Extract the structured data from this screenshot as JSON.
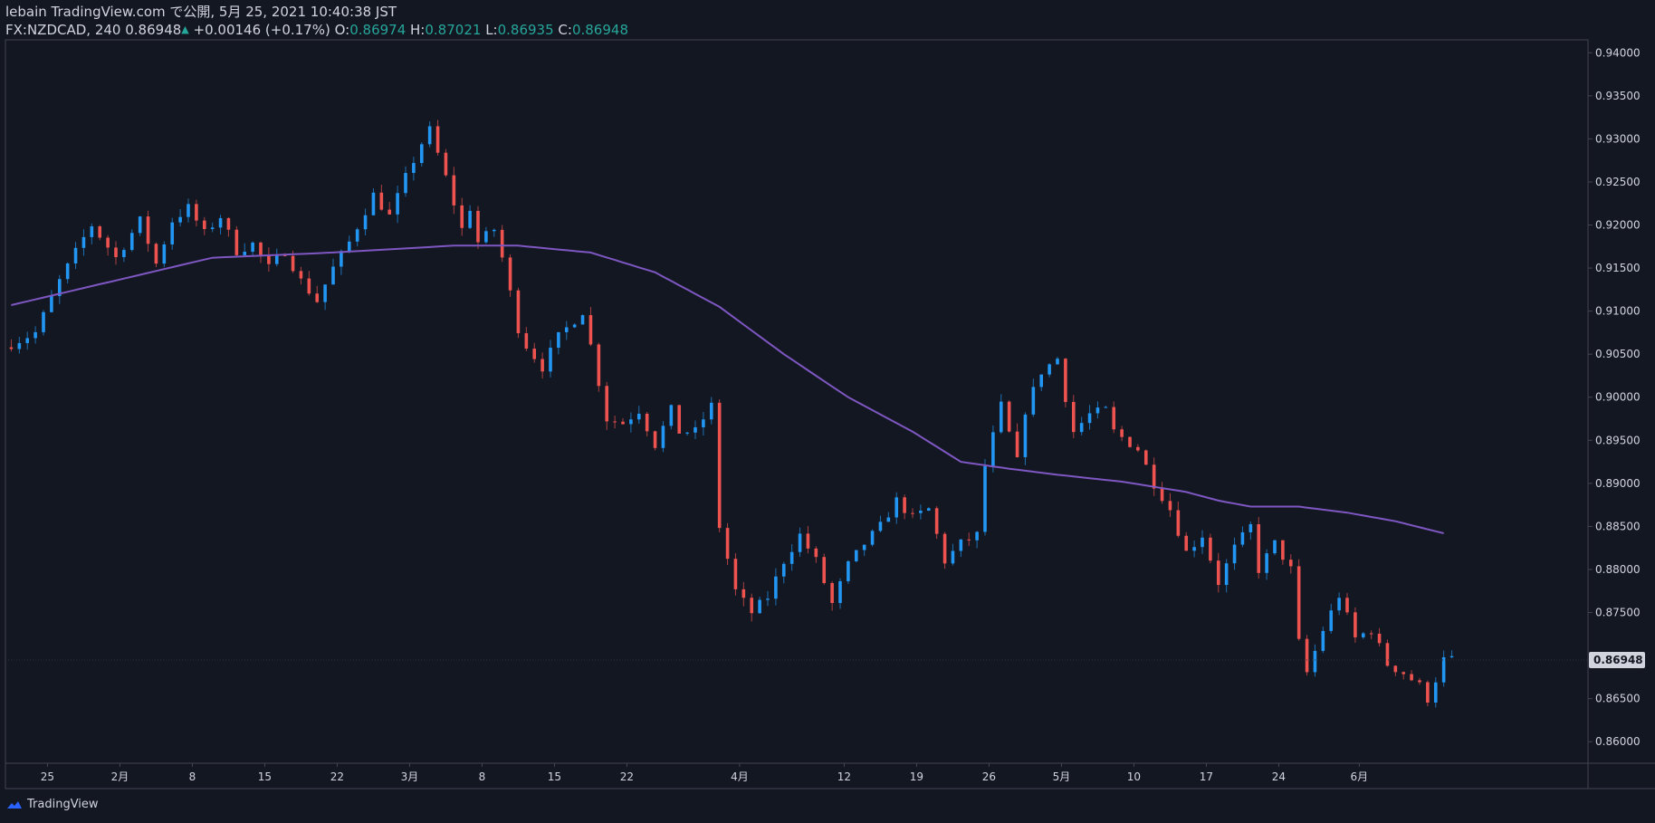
{
  "header": {
    "publisher_line": "lebain TradingView.com で公開, 5月 25, 2021 10:40:38 JST",
    "symbol": "FX:NZDCAD, 240",
    "last_price": "0.86948",
    "change_arrow": "▲",
    "change": "+0.00146 (+0.17%)",
    "open_label": "O:",
    "open_value": "0.86974",
    "high_label": "H:",
    "high_value": "0.87021",
    "low_label": "L:",
    "low_value": "0.86935",
    "close_label": "C:",
    "close_value": "0.86948"
  },
  "footer": {
    "brand": "TradingView",
    "brand_icon": "tradingview-cloud-icon"
  },
  "colors": {
    "background": "#131722",
    "up": "#2196f3",
    "down": "#ef5350",
    "moving_average": "#7e57c2",
    "text": "#d1d4dc",
    "green": "#26a69a"
  },
  "chart_data": {
    "type": "candlestick",
    "symbol": "FX:NZDCAD",
    "interval": "240",
    "ylim": [
      0.8575,
      0.9415
    ],
    "y_ticks": [
      "0.94000",
      "0.93500",
      "0.93000",
      "0.92500",
      "0.92000",
      "0.91500",
      "0.91000",
      "0.90500",
      "0.90000",
      "0.89500",
      "0.89000",
      "0.88500",
      "0.88000",
      "0.87500",
      "0.86500",
      "0.86000"
    ],
    "last_price_label": "0.86948",
    "x_ticks": [
      "25",
      "2月",
      "8",
      "15",
      "22",
      "3月",
      "8",
      "15",
      "22",
      "4月",
      "12",
      "19",
      "26",
      "5月",
      "10",
      "17",
      "24",
      "6月"
    ],
    "close_path": [
      [
        0,
        0.9062
      ],
      [
        3,
        0.9075
      ],
      [
        6,
        0.9135
      ],
      [
        9,
        0.9185
      ],
      [
        10,
        0.92
      ],
      [
        13,
        0.9162
      ],
      [
        16,
        0.9205
      ],
      [
        18,
        0.9155
      ],
      [
        20,
        0.9205
      ],
      [
        22,
        0.922
      ],
      [
        24,
        0.919
      ],
      [
        26,
        0.921
      ],
      [
        28,
        0.917
      ],
      [
        30,
        0.9178
      ],
      [
        32,
        0.915
      ],
      [
        34,
        0.917
      ],
      [
        36,
        0.9135
      ],
      [
        38,
        0.9112
      ],
      [
        40,
        0.915
      ],
      [
        42,
        0.918
      ],
      [
        45,
        0.9235
      ],
      [
        47,
        0.921
      ],
      [
        49,
        0.9255
      ],
      [
        51,
        0.9295
      ],
      [
        52,
        0.931
      ],
      [
        54,
        0.9255
      ],
      [
        56,
        0.9195
      ],
      [
        57,
        0.922
      ],
      [
        58,
        0.918
      ],
      [
        60,
        0.9195
      ],
      [
        61,
        0.9162
      ],
      [
        63,
        0.908
      ],
      [
        64,
        0.906
      ],
      [
        66,
        0.9035
      ],
      [
        68,
        0.907
      ],
      [
        71,
        0.91
      ],
      [
        72,
        0.906
      ],
      [
        74,
        0.8975
      ],
      [
        76,
        0.897
      ],
      [
        78,
        0.8985
      ],
      [
        80,
        0.8945
      ],
      [
        82,
        0.8985
      ],
      [
        83,
        0.896
      ],
      [
        85,
        0.896
      ],
      [
        87,
        0.899
      ],
      [
        88,
        0.885
      ],
      [
        90,
        0.8775
      ],
      [
        92,
        0.875
      ],
      [
        94,
        0.8768
      ],
      [
        96,
        0.881
      ],
      [
        98,
        0.884
      ],
      [
        100,
        0.881
      ],
      [
        102,
        0.876
      ],
      [
        104,
        0.8805
      ],
      [
        106,
        0.883
      ],
      [
        108,
        0.885
      ],
      [
        110,
        0.888
      ],
      [
        112,
        0.886
      ],
      [
        114,
        0.887
      ],
      [
        116,
        0.881
      ],
      [
        118,
        0.883
      ],
      [
        120,
        0.884
      ],
      [
        121,
        0.892
      ],
      [
        123,
        0.899
      ],
      [
        125,
        0.8925
      ],
      [
        126,
        0.8985
      ],
      [
        128,
        0.903
      ],
      [
        130,
        0.9045
      ],
      [
        131,
        0.9
      ],
      [
        132,
        0.896
      ],
      [
        134,
        0.898
      ],
      [
        136,
        0.8985
      ],
      [
        137,
        0.896
      ],
      [
        140,
        0.894
      ],
      [
        142,
        0.89
      ],
      [
        144,
        0.887
      ],
      [
        146,
        0.882
      ],
      [
        148,
        0.884
      ],
      [
        150,
        0.8785
      ],
      [
        152,
        0.8825
      ],
      [
        154,
        0.885
      ],
      [
        155,
        0.88
      ],
      [
        157,
        0.883
      ],
      [
        159,
        0.88
      ],
      [
        160,
        0.8715
      ],
      [
        161,
        0.868
      ],
      [
        163,
        0.873
      ],
      [
        165,
        0.877
      ],
      [
        167,
        0.872
      ],
      [
        169,
        0.873
      ],
      [
        171,
        0.869
      ],
      [
        173,
        0.868
      ],
      [
        175,
        0.8665
      ],
      [
        176,
        0.865
      ],
      [
        178,
        0.8695
      ]
    ],
    "moving_average": [
      [
        0,
        0.9107
      ],
      [
        15,
        0.914
      ],
      [
        25,
        0.9162
      ],
      [
        40,
        0.9168
      ],
      [
        55,
        0.9176
      ],
      [
        63,
        0.9176
      ],
      [
        72,
        0.9168
      ],
      [
        80,
        0.9145
      ],
      [
        88,
        0.9105
      ],
      [
        96,
        0.905
      ],
      [
        104,
        0.9
      ],
      [
        112,
        0.896
      ],
      [
        118,
        0.8925
      ],
      [
        124,
        0.8917
      ],
      [
        130,
        0.891
      ],
      [
        138,
        0.8902
      ],
      [
        146,
        0.889
      ],
      [
        150,
        0.888
      ],
      [
        154,
        0.8873
      ],
      [
        160,
        0.8873
      ],
      [
        166,
        0.8866
      ],
      [
        172,
        0.8856
      ],
      [
        178,
        0.8842
      ]
    ]
  }
}
